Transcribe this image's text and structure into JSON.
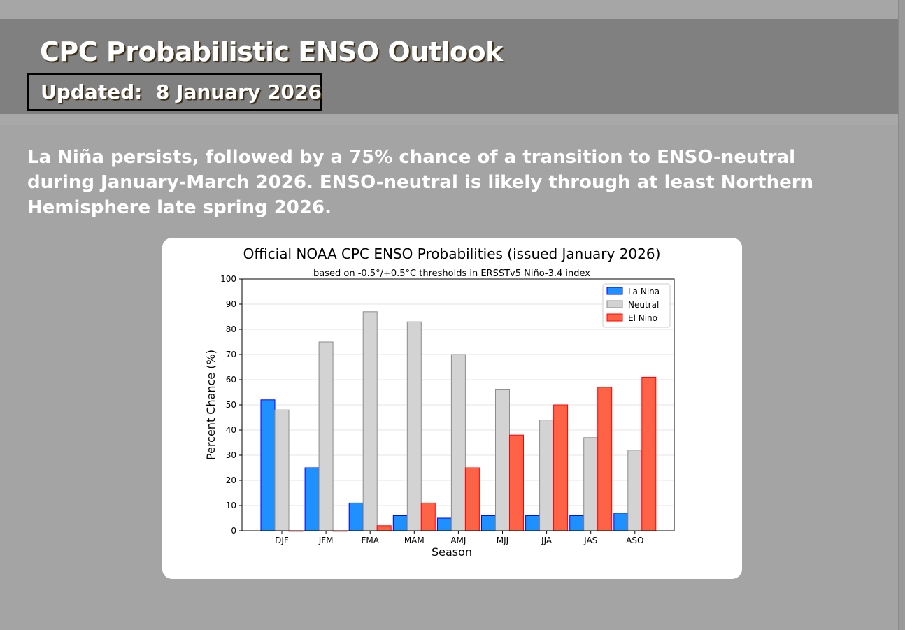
{
  "header": {
    "title": "CPC Probabilistic ENSO Outlook",
    "updated": "Updated:  8 January 2026"
  },
  "summary": "La Niña persists, followed by a 75% chance of a transition to ENSO-neutral during January-March 2026. ENSO-neutral is likely through at least Northern Hemisphere late spring 2026.",
  "chart_data": {
    "type": "bar",
    "title": "Official NOAA CPC ENSO Probabilities (issued January 2026)",
    "subtitle": "based on -0.5°/+0.5°C thresholds in ERSSTv5 Niño-3.4 index",
    "xlabel": "Season",
    "ylabel": "Percent Chance (%)",
    "ylim": [
      0,
      100
    ],
    "yticks": [
      0,
      10,
      20,
      30,
      40,
      50,
      60,
      70,
      80,
      90,
      100
    ],
    "grid": true,
    "legend_position": "top-right",
    "categories": [
      "DJF",
      "JFM",
      "FMA",
      "MAM",
      "AMJ",
      "MJJ",
      "JJA",
      "JAS",
      "ASO"
    ],
    "series": [
      {
        "name": "La Nina",
        "color": "#1e90ff",
        "edge": "#0000ff",
        "values": [
          52,
          25,
          11,
          6,
          5,
          6,
          6,
          6,
          7
        ]
      },
      {
        "name": "Neutral",
        "color": "#d3d3d3",
        "edge": "#8c8c8c",
        "values": [
          48,
          75,
          87,
          83,
          70,
          56,
          44,
          37,
          32
        ]
      },
      {
        "name": "El Nino",
        "color": "#ff6347",
        "edge": "#ff0000",
        "values": [
          0,
          0,
          2,
          11,
          25,
          38,
          50,
          57,
          61
        ]
      }
    ]
  }
}
